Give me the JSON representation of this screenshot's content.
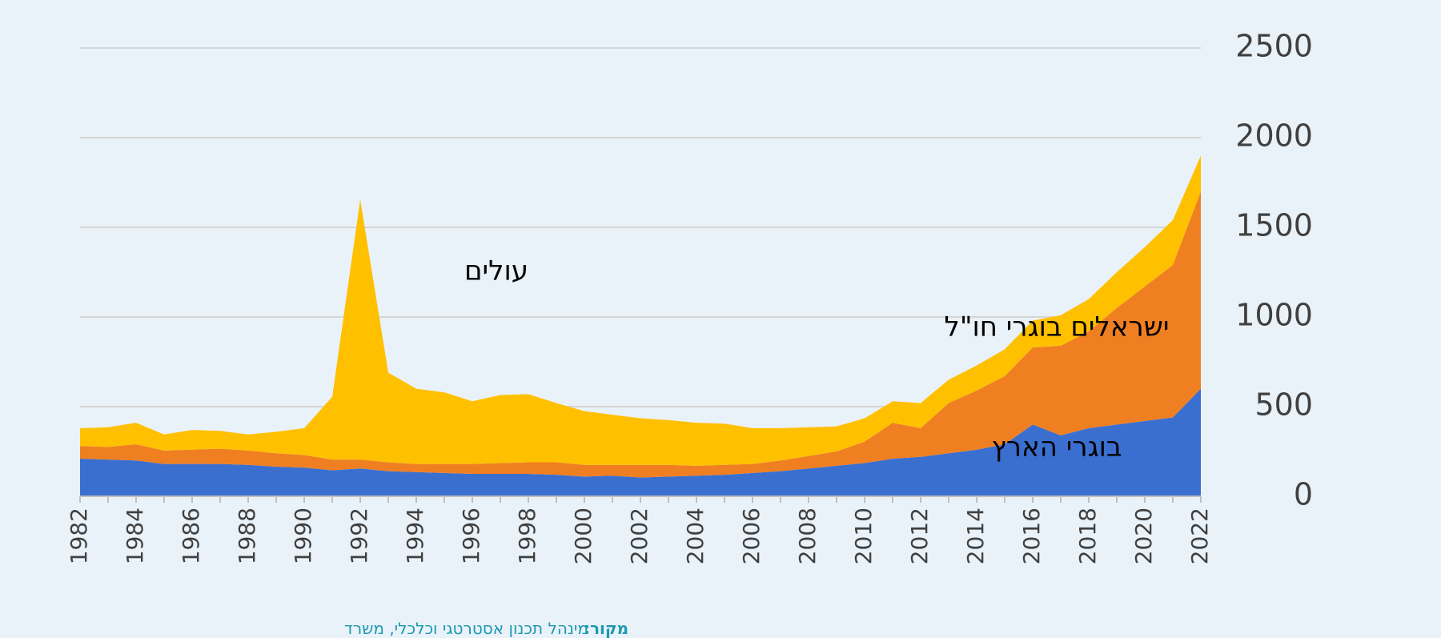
{
  "chart_data": {
    "type": "stacked-area",
    "categories": [
      "1982",
      null,
      "1984",
      null,
      "1986",
      null,
      "1988",
      null,
      "1990",
      null,
      "1992",
      null,
      "1994",
      null,
      "1996",
      null,
      "1998",
      null,
      "2000",
      null,
      "2002",
      null,
      "2004",
      null,
      "2006",
      null,
      "2008",
      null,
      "2010",
      null,
      "2012",
      null,
      "2014",
      null,
      "2016",
      null,
      "2018",
      null,
      "2020",
      null,
      "2022"
    ],
    "series": [
      {
        "name": "בוגרי הארץ",
        "color": "#3a6fd0",
        "values": [
          210,
          205,
          200,
          180,
          180,
          180,
          175,
          165,
          160,
          145,
          155,
          140,
          135,
          130,
          125,
          125,
          125,
          120,
          110,
          115,
          105,
          110,
          115,
          120,
          130,
          140,
          155,
          170,
          185,
          210,
          220,
          240,
          260,
          290,
          400,
          340,
          380,
          400,
          420,
          440,
          600
        ]
      },
      {
        "name": "ישראלים בוגרי חו\"ל",
        "color": "#f07f22",
        "values": [
          70,
          70,
          90,
          75,
          80,
          85,
          80,
          75,
          70,
          60,
          50,
          50,
          45,
          50,
          55,
          60,
          65,
          70,
          65,
          60,
          70,
          65,
          55,
          55,
          50,
          60,
          70,
          80,
          120,
          200,
          160,
          280,
          330,
          380,
          430,
          500,
          540,
          650,
          750,
          850,
          1100
        ]
      },
      {
        "name": "עולים",
        "color": "#ffc000",
        "values": [
          100,
          110,
          120,
          90,
          110,
          100,
          90,
          120,
          150,
          350,
          1450,
          500,
          420,
          400,
          350,
          380,
          380,
          330,
          300,
          280,
          260,
          250,
          240,
          230,
          200,
          180,
          160,
          140,
          130,
          120,
          140,
          130,
          140,
          150,
          150,
          170,
          180,
          200,
          220,
          250,
          200
        ]
      }
    ],
    "ylim": [
      0,
      2500
    ],
    "yticks": [
      0,
      500,
      1000,
      1500,
      2000,
      2500
    ],
    "grid": true,
    "source": {
      "label": "מקור:",
      "text": "מינהל תכנון אסטרטגי וכלכלי, משרד"
    }
  }
}
